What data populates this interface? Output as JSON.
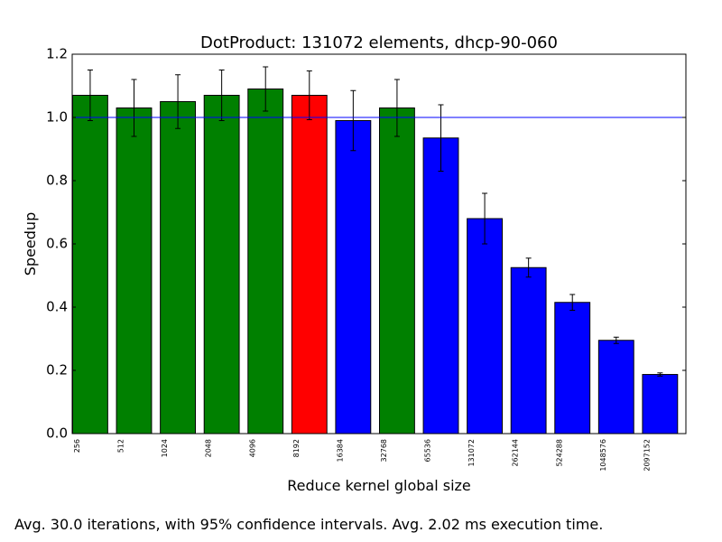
{
  "chart_data": {
    "type": "bar",
    "title": "DotProduct: 131072 elements, dhcp-90-060",
    "xlabel": "Reduce kernel global size",
    "ylabel": "Speedup",
    "ylim": [
      0.0,
      1.2
    ],
    "yticks": [
      "0.0",
      "0.2",
      "0.4",
      "0.6",
      "0.8",
      "1.0",
      "1.2"
    ],
    "grid": false,
    "reference_line": 1.0,
    "categories": [
      "256",
      "512",
      "1024",
      "2048",
      "4096",
      "8192",
      "16384",
      "32768",
      "65536",
      "131072",
      "262144",
      "524288",
      "1048576",
      "2097152"
    ],
    "values": [
      1.07,
      1.03,
      1.05,
      1.07,
      1.09,
      1.07,
      0.99,
      1.03,
      0.935,
      0.68,
      0.525,
      0.415,
      0.295,
      0.187
    ],
    "error": [
      0.08,
      0.09,
      0.085,
      0.08,
      0.07,
      0.077,
      0.095,
      0.09,
      0.105,
      0.08,
      0.03,
      0.025,
      0.01,
      0.005
    ],
    "bar_colors": [
      "#008000",
      "#008000",
      "#008000",
      "#008000",
      "#008000",
      "#ff0000",
      "#0000ff",
      "#008000",
      "#0000ff",
      "#0000ff",
      "#0000ff",
      "#0000ff",
      "#0000ff",
      "#0000ff"
    ],
    "reference_line_color": "#0000ff"
  },
  "caption": "Avg. 30.0 iterations, with 95% confidence intervals. Avg. 2.02 ms execution time."
}
